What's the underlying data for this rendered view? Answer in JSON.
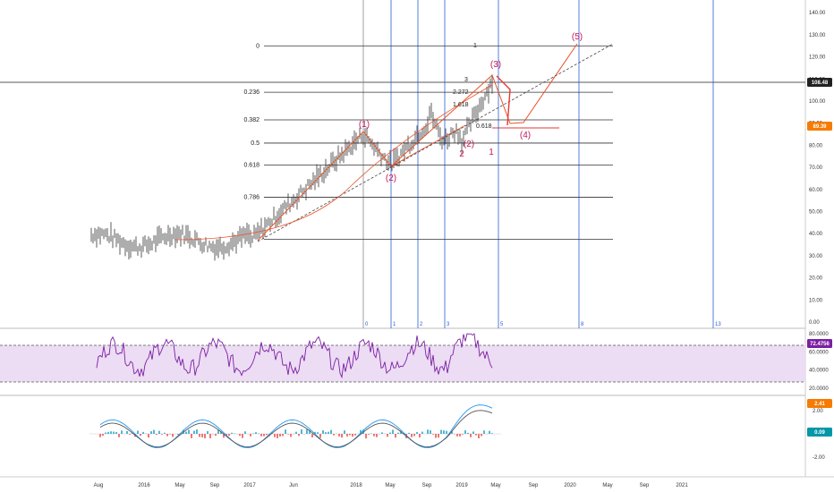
{
  "chart_data": [
    {
      "type": "line",
      "panel": "price",
      "y_ticks": [
        "0.00",
        "10.00",
        "20.00",
        "30.00",
        "40.00",
        "50.00",
        "60.00",
        "70.00",
        "80.00",
        "90.00",
        "100.00",
        "110.00",
        "120.00",
        "130.00",
        "140.00"
      ],
      "ylim": [
        0,
        140
      ],
      "last_price_label": "108.48",
      "secondary_price_label": "89.39",
      "fib_levels": [
        {
          "label": "0",
          "value": 125
        },
        {
          "label": "0.236",
          "value": 104
        },
        {
          "label": "0.382",
          "value": 91.5
        },
        {
          "label": "0.5",
          "value": 81
        },
        {
          "label": "0.618",
          "value": 71
        },
        {
          "label": "0.786",
          "value": 56.5
        },
        {
          "label": "1",
          "value": 37.5
        }
      ],
      "time_zone_labels": [
        "0",
        "1",
        "2",
        "3",
        "5",
        "8",
        "13"
      ],
      "wave_labels": [
        "(1)",
        "(2)",
        "(3)",
        "(4)",
        "(5)",
        "(2)",
        "2",
        "1"
      ],
      "fib_ext_labels": [
        "2.272",
        "1.618",
        "0.618",
        "3",
        "1"
      ],
      "x_ticks": [
        "Aug",
        "2016",
        "May",
        "Sep",
        "2017",
        "Jun",
        "2018",
        "May",
        "Sep",
        "2019",
        "May",
        "Sep",
        "2020",
        "May",
        "Sep",
        "2021"
      ]
    },
    {
      "type": "line",
      "panel": "rsi",
      "y_ticks": [
        "20.0000",
        "40.0000",
        "60.0000",
        "80.0000"
      ],
      "ylim": [
        15,
        85
      ],
      "band": [
        30,
        70
      ],
      "last_value_label": "72.4756"
    },
    {
      "type": "bar",
      "panel": "macd",
      "y_ticks": [
        "-2.00",
        "2.00"
      ],
      "ylim": [
        -3,
        3
      ],
      "last_value_label": "2.41",
      "histogram_label": "0.09"
    }
  ],
  "colors": {
    "fib_line": "#333333",
    "time_zone": "#2a5fd6",
    "wave_label": "#c2185b",
    "elliott": "#e8552a",
    "rsi_line": "#7b1fa2",
    "rsi_band": "#ecdcf4",
    "price_badge": "#222222",
    "secondary_badge": "#f57c00",
    "rsi_badge": "#7b1fa2",
    "macd_badge": "#f57c00",
    "hist_badge": "#0097a7"
  }
}
